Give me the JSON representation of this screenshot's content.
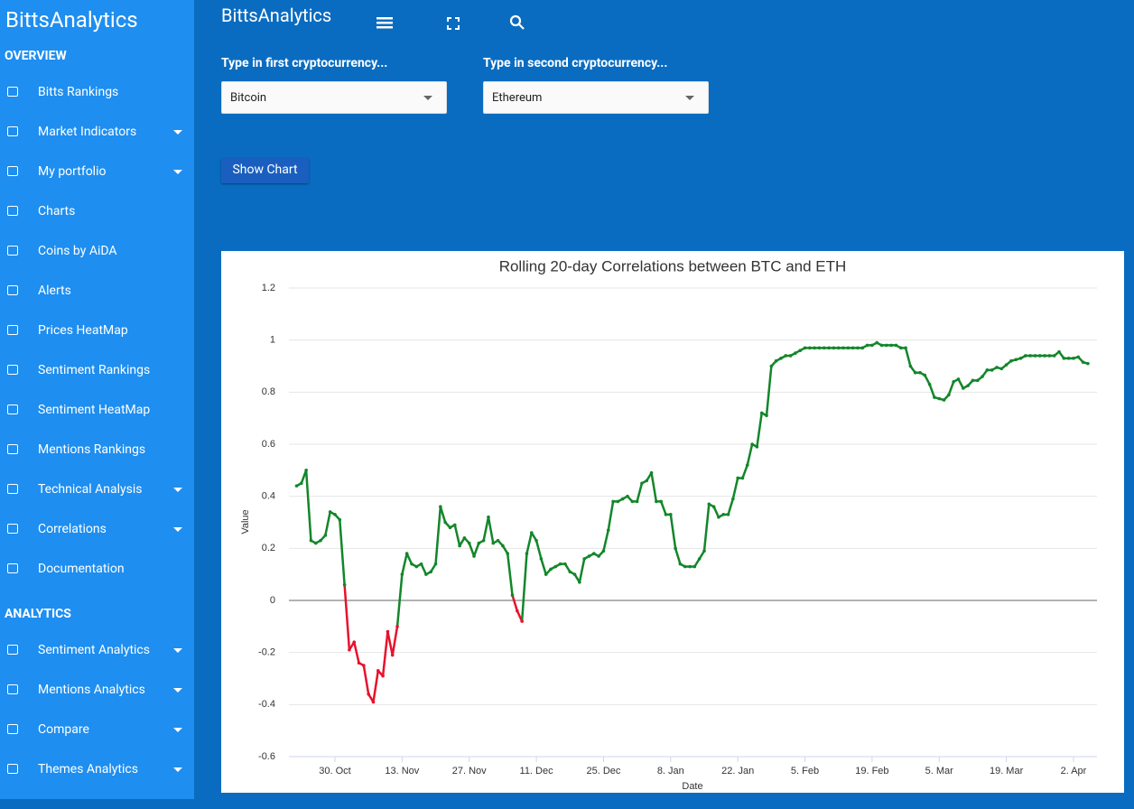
{
  "sidebar": {
    "brand": "BittsAnalytics",
    "sections": [
      {
        "title": "OVERVIEW",
        "items": [
          {
            "label": "Bitts Rankings",
            "caret": false
          },
          {
            "label": "Market Indicators",
            "caret": true
          },
          {
            "label": "My portfolio",
            "caret": true
          },
          {
            "label": "Charts",
            "caret": false
          },
          {
            "label": "Coins by AiDA",
            "caret": false
          },
          {
            "label": "Alerts",
            "caret": false
          },
          {
            "label": "Prices HeatMap",
            "caret": false
          },
          {
            "label": "Sentiment Rankings",
            "caret": false
          },
          {
            "label": "Sentiment HeatMap",
            "caret": false
          },
          {
            "label": "Mentions Rankings",
            "caret": false
          },
          {
            "label": "Technical Analysis",
            "caret": true
          },
          {
            "label": "Correlations",
            "caret": true
          },
          {
            "label": "Documentation",
            "caret": false
          }
        ]
      },
      {
        "title": "ANALYTICS",
        "items": [
          {
            "label": "Sentiment Analytics",
            "caret": true
          },
          {
            "label": "Mentions Analytics",
            "caret": true
          },
          {
            "label": "Compare",
            "caret": true
          },
          {
            "label": "Themes Analytics",
            "caret": true
          }
        ]
      }
    ]
  },
  "header": {
    "title": "BittsAnalytics"
  },
  "form": {
    "first_label": "Type in first cryptocurrency...",
    "first_value": "Bitcoin",
    "second_label": "Type in second cryptocurrency...",
    "second_value": "Ethereum",
    "button": "Show Chart"
  },
  "chart_data": {
    "type": "line",
    "title": "Rolling 20-day Correlations between BTC and ETH",
    "x_label": "Date",
    "y_label": "Value",
    "color": "#13862a",
    "negative_color": "#e8112d",
    "ylim": [
      -0.6,
      1.2
    ],
    "yticks": [
      -0.6,
      -0.4,
      -0.2,
      0,
      0.2,
      0.4,
      0.6,
      0.8,
      1,
      1.2
    ],
    "xlim": [
      -9.6,
      158.9
    ],
    "xticks": [
      {
        "value": 0,
        "label": "30. Oct"
      },
      {
        "value": 14,
        "label": "13. Nov"
      },
      {
        "value": 28,
        "label": "27. Nov"
      },
      {
        "value": 42,
        "label": "11. Dec"
      },
      {
        "value": 56,
        "label": "25. Dec"
      },
      {
        "value": 70,
        "label": "8. Jan"
      },
      {
        "value": 84,
        "label": "22. Jan"
      },
      {
        "value": 98,
        "label": "5. Feb"
      },
      {
        "value": 112,
        "label": "19. Feb"
      },
      {
        "value": 126,
        "label": "5. Mar"
      },
      {
        "value": 140,
        "label": "19. Mar"
      },
      {
        "value": 154,
        "label": "2. Apr"
      }
    ],
    "x": [
      -8,
      -7,
      -6,
      -5,
      -4,
      -3,
      -2,
      -1,
      0,
      1,
      2,
      3,
      4,
      5,
      6,
      7,
      8,
      9,
      10,
      11,
      12,
      13,
      14,
      15,
      16,
      17,
      18,
      19,
      20,
      21,
      22,
      23,
      24,
      25,
      26,
      27,
      28,
      29,
      30,
      31,
      32,
      33,
      34,
      35,
      36,
      37,
      38,
      39,
      40,
      41,
      42,
      43,
      44,
      45,
      46,
      47,
      48,
      49,
      50,
      51,
      52,
      53,
      54,
      55,
      56,
      57,
      58,
      59,
      60,
      61,
      62,
      63,
      64,
      65,
      66,
      67,
      68,
      69,
      70,
      71,
      72,
      73,
      74,
      75,
      76,
      77,
      78,
      79,
      80,
      81,
      82,
      83,
      84,
      85,
      86,
      87,
      88,
      89,
      90,
      91,
      92,
      93,
      94,
      95,
      96,
      97,
      98,
      99,
      100,
      101,
      102,
      103,
      104,
      105,
      106,
      107,
      108,
      109,
      110,
      111,
      112,
      113,
      114,
      115,
      116,
      117,
      118,
      119,
      120,
      121,
      122,
      123,
      124,
      125,
      126,
      127,
      128,
      129,
      130,
      131,
      132,
      133,
      134,
      135,
      136,
      137,
      138,
      139,
      140,
      141,
      142,
      143,
      144,
      145,
      146,
      147,
      148,
      149,
      150,
      151,
      152,
      153,
      154,
      155,
      156,
      157
    ],
    "values": [
      0.44,
      0.45,
      0.5,
      0.23,
      0.22,
      0.23,
      0.25,
      0.34,
      0.33,
      0.31,
      0.06,
      -0.19,
      -0.16,
      -0.24,
      -0.25,
      -0.36,
      -0.39,
      -0.27,
      -0.29,
      -0.12,
      -0.21,
      -0.1,
      0.1,
      0.18,
      0.14,
      0.13,
      0.14,
      0.1,
      0.11,
      0.14,
      0.36,
      0.3,
      0.28,
      0.29,
      0.21,
      0.24,
      0.22,
      0.17,
      0.22,
      0.23,
      0.32,
      0.22,
      0.23,
      0.21,
      0.18,
      0.02,
      -0.04,
      -0.08,
      0.18,
      0.26,
      0.23,
      0.16,
      0.1,
      0.12,
      0.13,
      0.14,
      0.14,
      0.11,
      0.1,
      0.07,
      0.16,
      0.17,
      0.18,
      0.17,
      0.19,
      0.27,
      0.38,
      0.38,
      0.39,
      0.4,
      0.38,
      0.38,
      0.45,
      0.46,
      0.49,
      0.38,
      0.38,
      0.33,
      0.33,
      0.2,
      0.14,
      0.13,
      0.13,
      0.13,
      0.16,
      0.19,
      0.37,
      0.36,
      0.32,
      0.33,
      0.33,
      0.39,
      0.47,
      0.47,
      0.52,
      0.6,
      0.59,
      0.72,
      0.71,
      0.9,
      0.92,
      0.93,
      0.94,
      0.94,
      0.95,
      0.96,
      0.97,
      0.97,
      0.97,
      0.97,
      0.97,
      0.97,
      0.97,
      0.97,
      0.97,
      0.97,
      0.97,
      0.97,
      0.97,
      0.98,
      0.98,
      0.99,
      0.98,
      0.98,
      0.98,
      0.98,
      0.97,
      0.97,
      0.9,
      0.875,
      0.875,
      0.865,
      0.83,
      0.78,
      0.775,
      0.77,
      0.79,
      0.84,
      0.85,
      0.815,
      0.825,
      0.845,
      0.845,
      0.86,
      0.885,
      0.885,
      0.895,
      0.89,
      0.905,
      0.92,
      0.925,
      0.93,
      0.94,
      0.94,
      0.94,
      0.94,
      0.94,
      0.94,
      0.94,
      0.955,
      0.93,
      0.93,
      0.93,
      0.935,
      0.915,
      0.91
    ]
  }
}
